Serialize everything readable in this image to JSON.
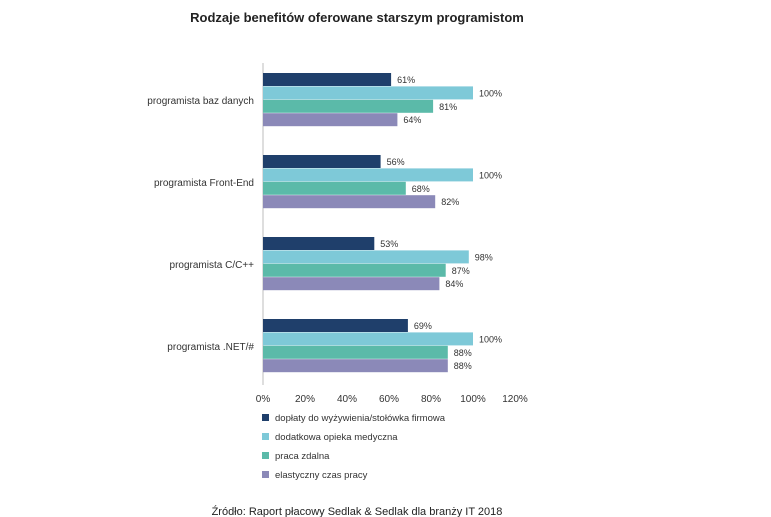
{
  "chart_data": {
    "type": "bar",
    "orientation": "horizontal",
    "title": "Rodzaje benefitów oferowane starszym programistom",
    "categories": [
      "programista baz danych",
      "programista Front-End",
      "programista C/C++",
      "programista .NET/#"
    ],
    "series": [
      {
        "name": "dopłaty do wyżywienia/stołówka firmowa",
        "color": "#1f3f6b",
        "values": [
          61,
          56,
          53,
          69
        ]
      },
      {
        "name": "dodatkowa opieka medyczna",
        "color": "#7ec9d8",
        "values": [
          100,
          100,
          98,
          100
        ]
      },
      {
        "name": "praca zdalna",
        "color": "#5bbaa9",
        "values": [
          81,
          68,
          87,
          88
        ]
      },
      {
        "name": "elastyczny czas pracy",
        "color": "#8b89b8",
        "values": [
          64,
          82,
          84,
          88
        ]
      }
    ],
    "value_suffix": "%",
    "xlim": [
      0,
      120
    ],
    "xticks": [
      "0%",
      "20%",
      "40%",
      "60%",
      "80%",
      "100%",
      "120%"
    ],
    "grid": false,
    "legend_position": "bottom-left"
  },
  "source": "Źródło: Raport płacowy Sedlak & Sedlak dla branży IT 2018"
}
